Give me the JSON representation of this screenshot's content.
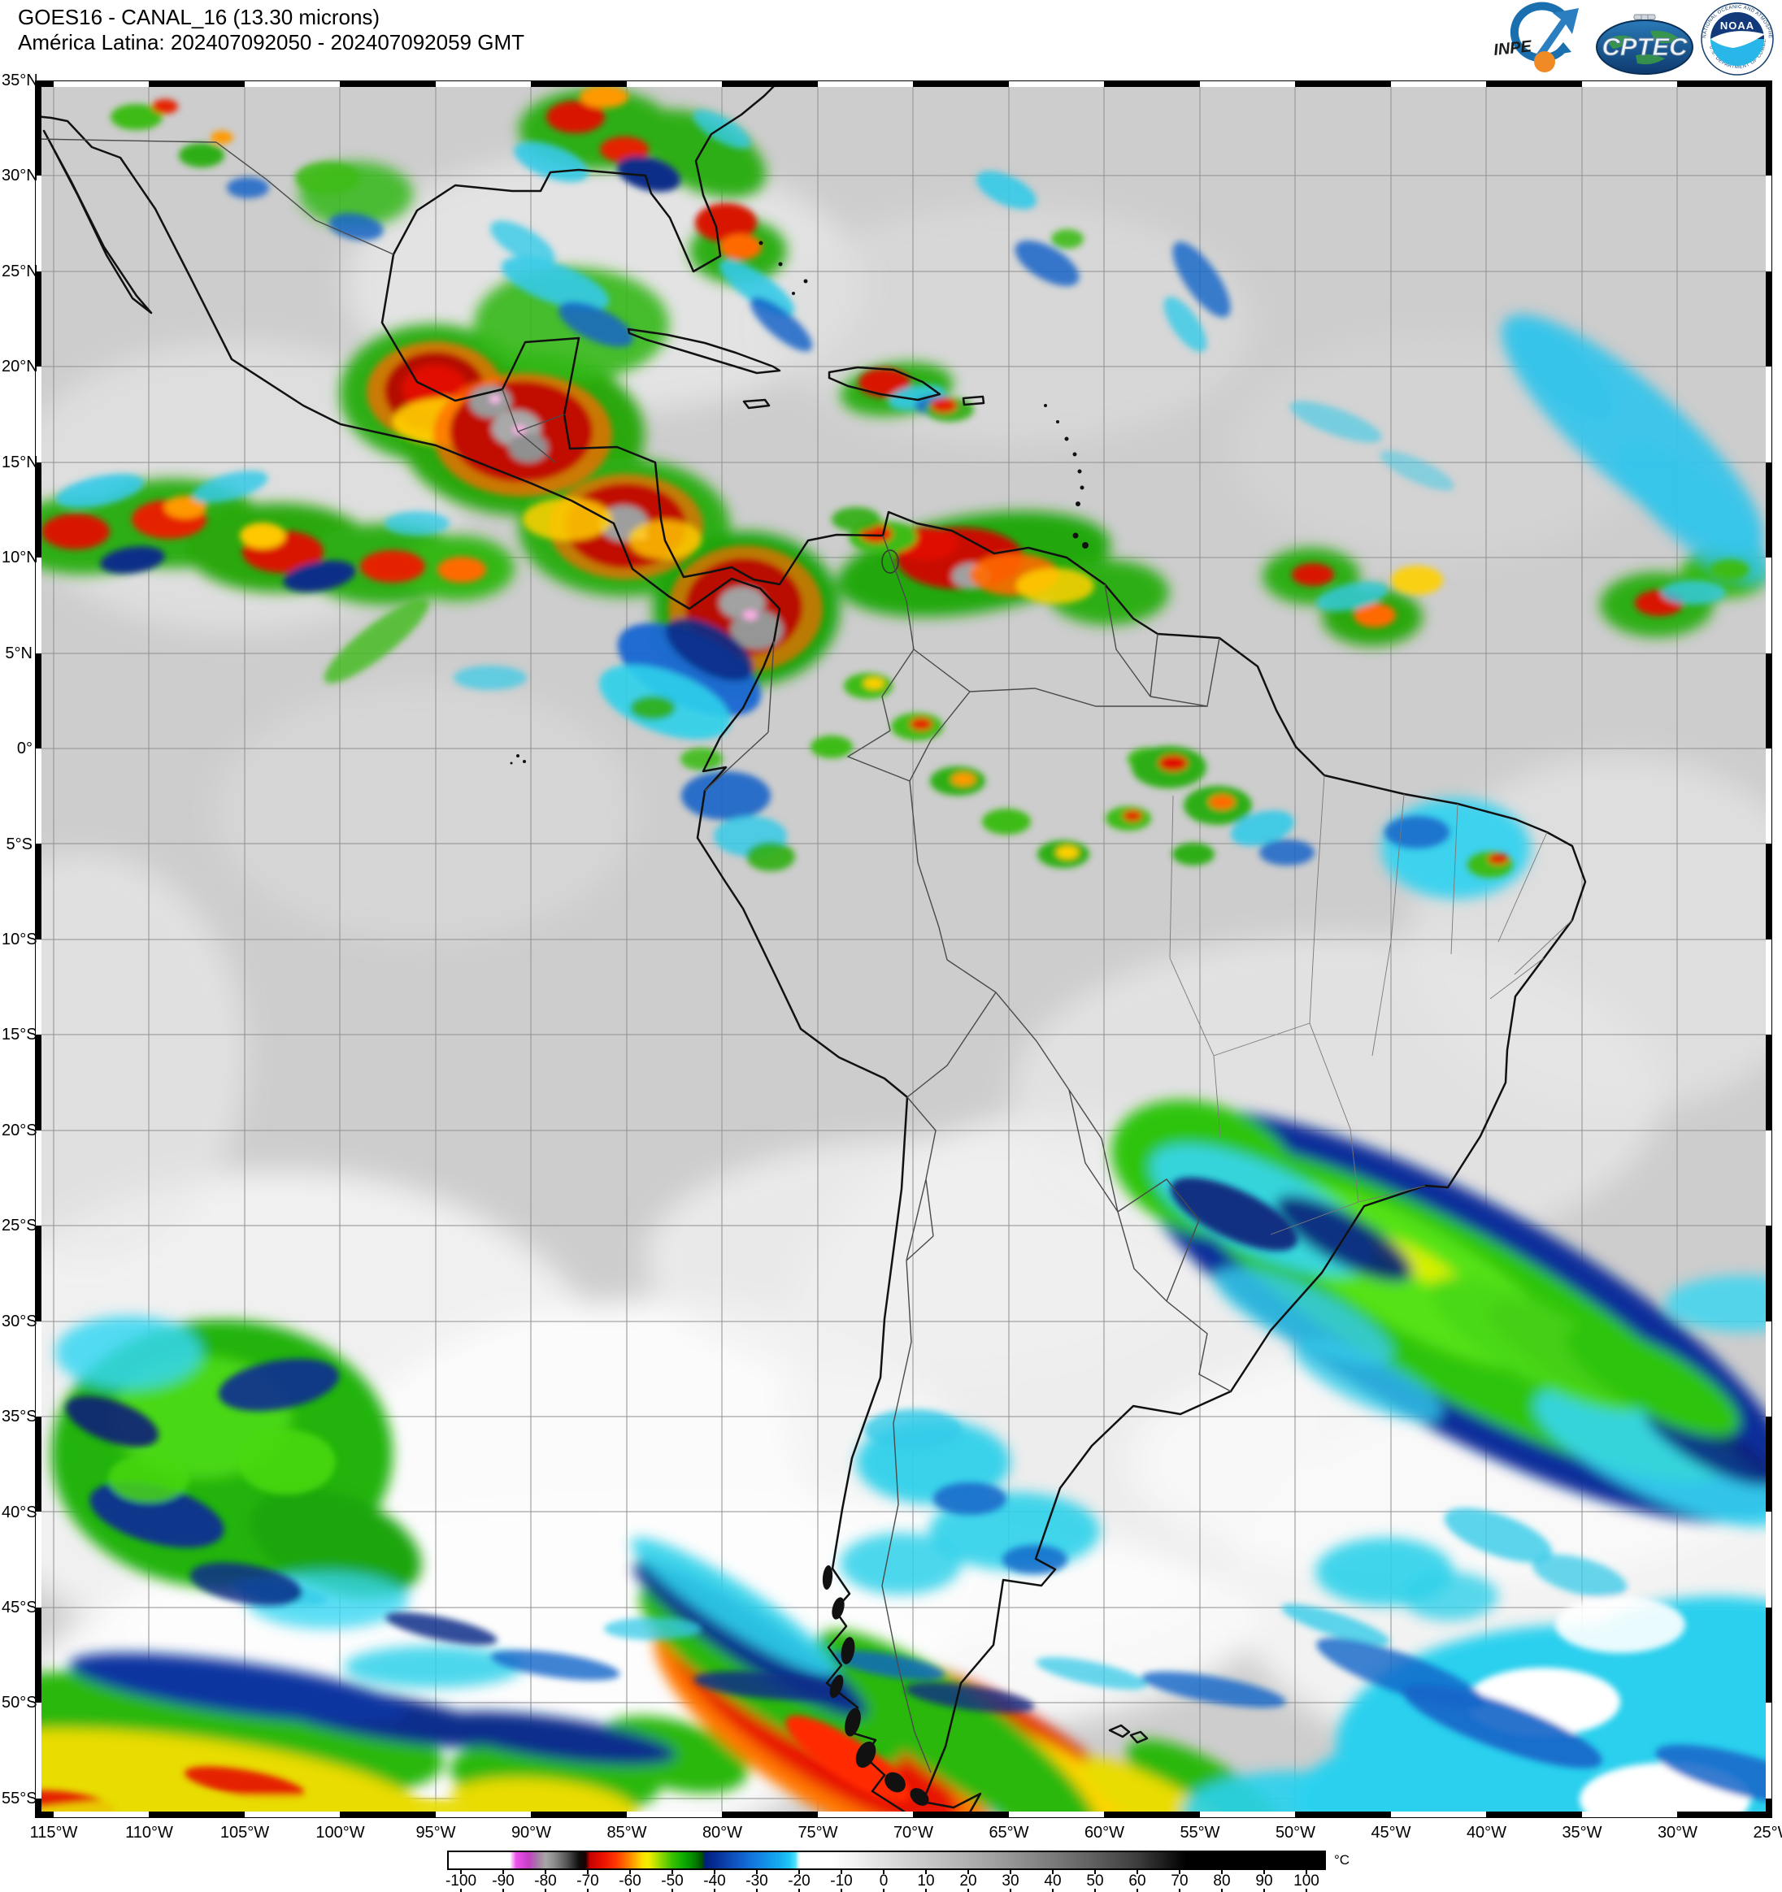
{
  "header": {
    "line1": "GOES16 - CANAL_16 (13.30 microns)",
    "line2": "América Latina: 202407092050 - 202407092059 GMT"
  },
  "logos": {
    "inpe": {
      "text": "INPE"
    },
    "cptec": {
      "text": "CPTEC"
    },
    "noaa": {
      "text": "NOAA",
      "ring_top": "NATIONAL OCEANIC AND ATMOSPHERIC ADMINISTRATION",
      "ring_bottom": "U.S. DEPARTMENT OF COMMERCE"
    }
  },
  "map": {
    "lat_labels": [
      "35°N",
      "30°N",
      "25°N",
      "20°N",
      "15°N",
      "10°N",
      "5°N",
      "0°",
      "5°S",
      "10°S",
      "15°S",
      "20°S",
      "25°S",
      "30°S",
      "35°S",
      "40°S",
      "45°S",
      "50°S",
      "55°S"
    ],
    "lon_labels": [
      "115°W",
      "110°W",
      "105°W",
      "100°W",
      "95°W",
      "90°W",
      "85°W",
      "80°W",
      "75°W",
      "70°W",
      "65°W",
      "60°W",
      "55°W",
      "50°W",
      "45°W",
      "40°W",
      "35°W",
      "30°W",
      "25°W"
    ]
  },
  "colorbar": {
    "unit": "°C",
    "ticks": [
      "-100",
      "-90",
      "-80",
      "-70",
      "-60",
      "-50",
      "-40",
      "-30",
      "-20",
      "-10",
      "0",
      "10",
      "20",
      "30",
      "40",
      "50",
      "60",
      "70",
      "80",
      "90",
      "100"
    ],
    "range_min": -103,
    "range_max": 105,
    "stops": [
      {
        "t": -103,
        "c": "#ffffff"
      },
      {
        "t": -88.5,
        "c": "#ffffff"
      },
      {
        "t": -87,
        "c": "#ec52ec"
      },
      {
        "t": -84,
        "c": "#c43fc4"
      },
      {
        "t": -82,
        "c": "#a878a8"
      },
      {
        "t": -80,
        "c": "#a6a6a6"
      },
      {
        "t": -78,
        "c": "#8e8e8e"
      },
      {
        "t": -75,
        "c": "#555555"
      },
      {
        "t": -72,
        "c": "#0d0d0d"
      },
      {
        "t": -70.5,
        "c": "#1a0000"
      },
      {
        "t": -69.5,
        "c": "#c80000"
      },
      {
        "t": -66,
        "c": "#ee1500"
      },
      {
        "t": -63,
        "c": "#ff3c00"
      },
      {
        "t": -60.5,
        "c": "#ff7a00"
      },
      {
        "t": -58.5,
        "c": "#ffb200"
      },
      {
        "t": -57,
        "c": "#ffe000"
      },
      {
        "t": -55.5,
        "c": "#f2ee00"
      },
      {
        "t": -54,
        "c": "#c0e400"
      },
      {
        "t": -52,
        "c": "#7cd400"
      },
      {
        "t": -50,
        "c": "#3cc200"
      },
      {
        "t": -47.5,
        "c": "#0fae00"
      },
      {
        "t": -45.5,
        "c": "#069200"
      },
      {
        "t": -44,
        "c": "#027200"
      },
      {
        "t": -43,
        "c": "#015500"
      },
      {
        "t": -42.4,
        "c": "#013a33"
      },
      {
        "t": -42,
        "c": "#021e7e"
      },
      {
        "t": -39.5,
        "c": "#072e96"
      },
      {
        "t": -36.5,
        "c": "#0c47b4"
      },
      {
        "t": -33.5,
        "c": "#1060cc"
      },
      {
        "t": -30.5,
        "c": "#127ade"
      },
      {
        "t": -27.5,
        "c": "#1292e8"
      },
      {
        "t": -24.5,
        "c": "#14acf0"
      },
      {
        "t": -22,
        "c": "#20c8f6"
      },
      {
        "t": -20.6,
        "c": "#55e2fa"
      },
      {
        "t": -20,
        "c": "#c8f4fc"
      },
      {
        "t": -19.4,
        "c": "#ffffff"
      },
      {
        "t": -12,
        "c": "#ffffff"
      },
      {
        "t": -6,
        "c": "#f0f0f0"
      },
      {
        "t": 0,
        "c": "#e0e0e0"
      },
      {
        "t": 10,
        "c": "#c9c9c9"
      },
      {
        "t": 20,
        "c": "#b1b1b1"
      },
      {
        "t": 30,
        "c": "#979797"
      },
      {
        "t": 40,
        "c": "#7c7c7c"
      },
      {
        "t": 50,
        "c": "#606060"
      },
      {
        "t": 60,
        "c": "#3f3f3f"
      },
      {
        "t": 67,
        "c": "#1c1c1c"
      },
      {
        "t": 72,
        "c": "#000000"
      },
      {
        "t": 105,
        "c": "#000000"
      }
    ]
  },
  "colors": {
    "map_base": "#cdcdcd",
    "grid": "#8f8f8f",
    "coast": "#111111"
  }
}
